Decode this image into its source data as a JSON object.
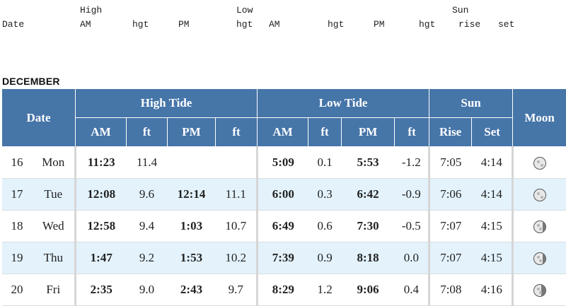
{
  "pre_header": {
    "high": "High",
    "low": "Low",
    "sun": "Sun",
    "date": "Date",
    "am": "AM",
    "hgt": "hgt",
    "pm": "PM",
    "rise": "rise",
    "set": "set"
  },
  "month": "DECEMBER",
  "headers": {
    "date": "Date",
    "high_tide": "High Tide",
    "low_tide": "Low Tide",
    "sun": "Sun",
    "moon": "Moon",
    "am": "AM",
    "ft": "ft",
    "pm": "PM",
    "rise": "Rise",
    "set": "Set"
  },
  "rows": [
    {
      "day": "16",
      "weekday": "Mon",
      "high_am": "11:23",
      "high_am_ft": "11.4",
      "high_pm": "",
      "high_pm_ft": "",
      "low_am": "5:09",
      "low_am_ft": "0.1",
      "low_pm": "5:53",
      "low_pm_ft": "-1.2",
      "rise": "7:05",
      "set": "4:14",
      "moon": "full-moon-icon",
      "moon_shade": 0.0
    },
    {
      "day": "17",
      "weekday": "Tue",
      "high_am": "12:08",
      "high_am_ft": "9.6",
      "high_pm": "12:14",
      "high_pm_ft": "11.1",
      "low_am": "6:00",
      "low_am_ft": "0.3",
      "low_pm": "6:42",
      "low_pm_ft": "-0.9",
      "rise": "7:06",
      "set": "4:14",
      "moon": "full-moon-icon",
      "moon_shade": 0.0
    },
    {
      "day": "18",
      "weekday": "Wed",
      "high_am": "12:58",
      "high_am_ft": "9.4",
      "high_pm": "1:03",
      "high_pm_ft": "10.7",
      "low_am": "6:49",
      "low_am_ft": "0.6",
      "low_pm": "7:30",
      "low_pm_ft": "-0.5",
      "rise": "7:07",
      "set": "4:15",
      "moon": "waning-gibbous-moon-icon",
      "moon_shade": 0.25
    },
    {
      "day": "19",
      "weekday": "Thu",
      "high_am": "1:47",
      "high_am_ft": "9.2",
      "high_pm": "1:53",
      "high_pm_ft": "10.2",
      "low_am": "7:39",
      "low_am_ft": "0.9",
      "low_pm": "8:18",
      "low_pm_ft": "0.0",
      "rise": "7:07",
      "set": "4:15",
      "moon": "waning-gibbous-moon-icon",
      "moon_shade": 0.3
    },
    {
      "day": "20",
      "weekday": "Fri",
      "high_am": "2:35",
      "high_am_ft": "9.0",
      "high_pm": "2:43",
      "high_pm_ft": "9.7",
      "low_am": "8:29",
      "low_am_ft": "1.2",
      "low_pm": "9:06",
      "low_pm_ft": "0.4",
      "rise": "7:08",
      "set": "4:16",
      "moon": "waning-gibbous-moon-icon",
      "moon_shade": 0.38
    }
  ]
}
